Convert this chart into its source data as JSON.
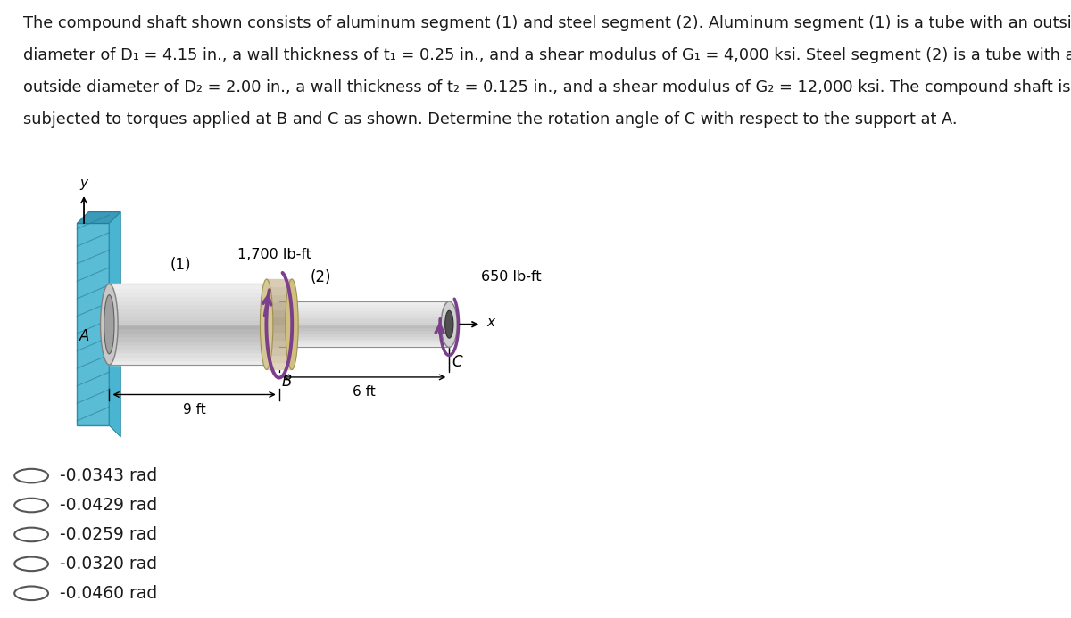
{
  "title_line1": "The compound shaft shown consists of aluminum segment (1) and steel segment (2). Aluminum segment (1) is a tube with an outside",
  "title_line2": "diameter of D₁ = 4.15 in., a wall thickness of t₁ = 0.25 in., and a shear modulus of G₁ = 4,000 ksi. Steel segment (2) is a tube with an",
  "title_line3": "outside diameter of D₂ = 2.00 in., a wall thickness of t₂ = 0.125 in., and a shear modulus of G₂ = 12,000 ksi. The compound shaft is",
  "title_line4": "subjected to torques applied at B and C as shown. Determine the rotation angle of C with respect to the support at A.",
  "bg_color": "#ffffff",
  "text_color": "#1a1a1a",
  "choices": [
    "-0.0343 rad",
    "-0.0429 rad",
    "-0.0259 rad",
    "-0.0320 rad",
    "-0.0460 rad"
  ],
  "title_fontsize": 12.8,
  "choice_fontsize": 13.5,
  "wall_color_front": "#5bbcd6",
  "wall_color_side": "#4ab5d0",
  "wall_color_top": "#3a9ab8",
  "wall_hatch_color": "#2a7a98",
  "arrow_color": "#7b3f8c",
  "segment1_label": "(1)",
  "segment2_label": "(2)",
  "torque1_label": "1,700 lb-ft",
  "torque2_label": "650 lb-ft",
  "length1_label": "9 ft",
  "length2_label": "6 ft",
  "point_A": "A",
  "point_B": "B",
  "point_C": "C",
  "axis_x": "x",
  "axis_y": "y",
  "joint_color": "#d4c896",
  "joint_edge": "#a09050"
}
